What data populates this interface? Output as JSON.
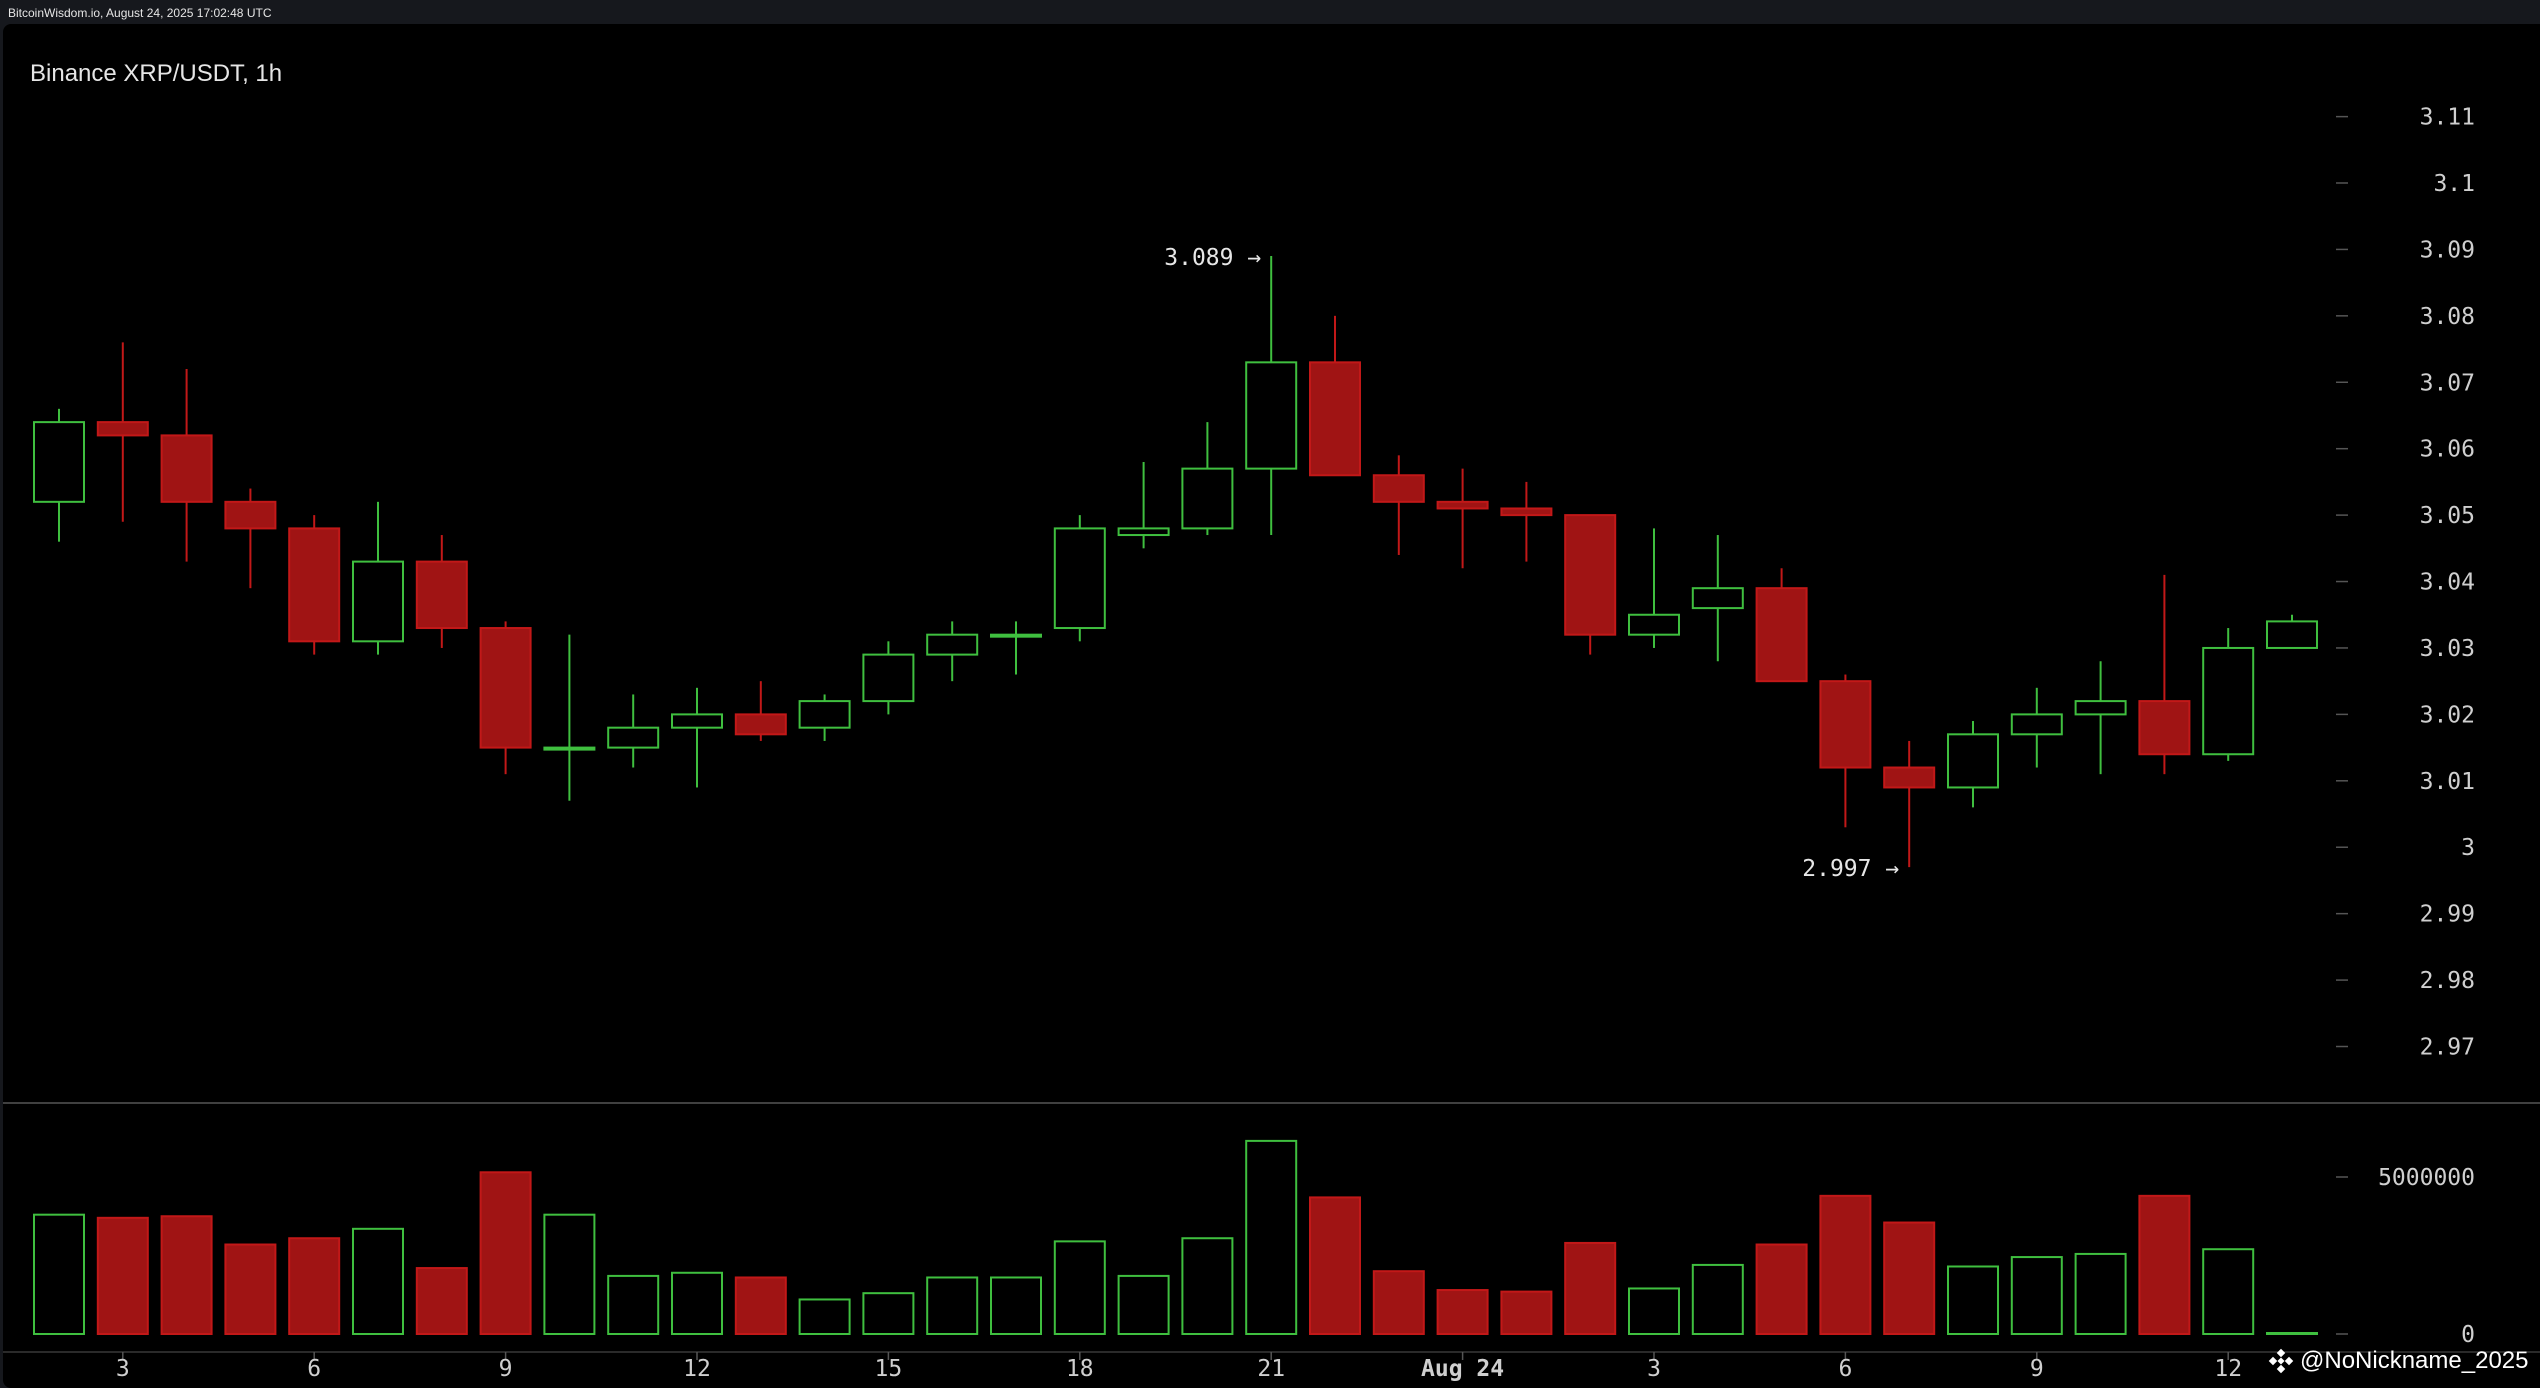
{
  "header": {
    "source_timestamp": "BitcoinWisdom.io, August 24, 2025 17:02:48 UTC"
  },
  "watermark": {
    "handle": "@NoNickname_2025",
    "icon": "binance-logo-icon"
  },
  "colors": {
    "up": "#3fbf3f",
    "down": "#a01414",
    "down_border": "#c21818",
    "text": "#e6e6e6",
    "axis_text": "#cfcfcf",
    "grid_tick": "#555555",
    "separator": "#555555",
    "background": "#000000"
  },
  "chart_data": {
    "type": "candlestick",
    "title": "Binance XRP/USDT, 1h",
    "price_axis": {
      "ticks": [
        3.11,
        3.1,
        3.09,
        3.08,
        3.07,
        3.06,
        3.05,
        3.04,
        3.03,
        3.02,
        3.01,
        3,
        2.99,
        2.98,
        2.97
      ],
      "labels": [
        "3.11",
        "3.1",
        "3.09",
        "3.08",
        "3.07",
        "3.06",
        "3.05",
        "3.04",
        "3.03",
        "3.02",
        "3.01",
        "3",
        "2.99",
        "2.98",
        "2.97"
      ],
      "ylim": [
        2.963,
        3.114
      ]
    },
    "volume_axis": {
      "ticks": [
        0,
        5000000
      ],
      "labels": [
        "0",
        "5000000"
      ],
      "ylim": [
        0,
        7000000
      ]
    },
    "time_axis": {
      "labels": [
        "3",
        "6",
        "9",
        "12",
        "15",
        "18",
        "21",
        "Aug 24",
        "3",
        "6",
        "9",
        "12"
      ],
      "label_candle_index": [
        1,
        4,
        7,
        10,
        13,
        16,
        19,
        22,
        25,
        28,
        31,
        34
      ]
    },
    "annotations": [
      {
        "text": "3.089 →",
        "candle_index": 19,
        "price": 3.089
      },
      {
        "text": "2.997 →",
        "candle_index": 29,
        "price": 2.997
      }
    ],
    "candles": [
      {
        "open": 3.052,
        "high": 3.066,
        "low": 3.046,
        "close": 3.064,
        "volume": 3800000
      },
      {
        "open": 3.064,
        "high": 3.076,
        "low": 3.049,
        "close": 3.062,
        "volume": 3700000
      },
      {
        "open": 3.062,
        "high": 3.072,
        "low": 3.043,
        "close": 3.052,
        "volume": 3750000
      },
      {
        "open": 3.052,
        "high": 3.054,
        "low": 3.039,
        "close": 3.048,
        "volume": 2850000
      },
      {
        "open": 3.048,
        "high": 3.05,
        "low": 3.029,
        "close": 3.031,
        "volume": 3050000
      },
      {
        "open": 3.031,
        "high": 3.052,
        "low": 3.029,
        "close": 3.043,
        "volume": 3350000
      },
      {
        "open": 3.043,
        "high": 3.047,
        "low": 3.03,
        "close": 3.033,
        "volume": 2100000
      },
      {
        "open": 3.033,
        "high": 3.034,
        "low": 3.011,
        "close": 3.015,
        "volume": 5150000
      },
      {
        "open": 3.015,
        "high": 3.032,
        "low": 3.007,
        "close": 3.015,
        "volume": 3800000
      },
      {
        "open": 3.015,
        "high": 3.023,
        "low": 3.012,
        "close": 3.018,
        "volume": 1850000
      },
      {
        "open": 3.018,
        "high": 3.024,
        "low": 3.009,
        "close": 3.02,
        "volume": 1950000
      },
      {
        "open": 3.02,
        "high": 3.025,
        "low": 3.016,
        "close": 3.017,
        "volume": 1800000
      },
      {
        "open": 3.018,
        "high": 3.023,
        "low": 3.016,
        "close": 3.022,
        "volume": 1100000
      },
      {
        "open": 3.022,
        "high": 3.031,
        "low": 3.02,
        "close": 3.029,
        "volume": 1300000
      },
      {
        "open": 3.029,
        "high": 3.034,
        "low": 3.025,
        "close": 3.032,
        "volume": 1800000
      },
      {
        "open": 3.032,
        "high": 3.034,
        "low": 3.026,
        "close": 3.032,
        "volume": 1800000
      },
      {
        "open": 3.033,
        "high": 3.05,
        "low": 3.031,
        "close": 3.048,
        "volume": 2950000
      },
      {
        "open": 3.047,
        "high": 3.058,
        "low": 3.045,
        "close": 3.048,
        "volume": 1850000
      },
      {
        "open": 3.048,
        "high": 3.064,
        "low": 3.047,
        "close": 3.057,
        "volume": 3050000
      },
      {
        "open": 3.057,
        "high": 3.089,
        "low": 3.047,
        "close": 3.073,
        "volume": 6150000
      },
      {
        "open": 3.073,
        "high": 3.08,
        "low": 3.056,
        "close": 3.056,
        "volume": 4350000
      },
      {
        "open": 3.056,
        "high": 3.059,
        "low": 3.044,
        "close": 3.052,
        "volume": 2000000
      },
      {
        "open": 3.052,
        "high": 3.057,
        "low": 3.042,
        "close": 3.051,
        "volume": 1400000
      },
      {
        "open": 3.051,
        "high": 3.055,
        "low": 3.043,
        "close": 3.05,
        "volume": 1350000
      },
      {
        "open": 3.05,
        "high": 3.05,
        "low": 3.029,
        "close": 3.032,
        "volume": 2900000
      },
      {
        "open": 3.032,
        "high": 3.048,
        "low": 3.03,
        "close": 3.035,
        "volume": 1450000
      },
      {
        "open": 3.036,
        "high": 3.047,
        "low": 3.028,
        "close": 3.039,
        "volume": 2200000
      },
      {
        "open": 3.039,
        "high": 3.042,
        "low": 3.025,
        "close": 3.025,
        "volume": 2850000
      },
      {
        "open": 3.025,
        "high": 3.026,
        "low": 3.003,
        "close": 3.012,
        "volume": 4400000
      },
      {
        "open": 3.012,
        "high": 3.016,
        "low": 2.997,
        "close": 3.009,
        "volume": 3550000
      },
      {
        "open": 3.009,
        "high": 3.019,
        "low": 3.006,
        "close": 3.017,
        "volume": 2150000
      },
      {
        "open": 3.017,
        "high": 3.024,
        "low": 3.012,
        "close": 3.02,
        "volume": 2450000
      },
      {
        "open": 3.02,
        "high": 3.028,
        "low": 3.011,
        "close": 3.022,
        "volume": 2550000
      },
      {
        "open": 3.022,
        "high": 3.041,
        "low": 3.011,
        "close": 3.014,
        "volume": 4400000
      },
      {
        "open": 3.014,
        "high": 3.033,
        "low": 3.013,
        "close": 3.03,
        "volume": 2700000
      },
      {
        "open": 3.03,
        "high": 3.035,
        "low": 3.03,
        "close": 3.034,
        "volume": 20000
      }
    ]
  }
}
